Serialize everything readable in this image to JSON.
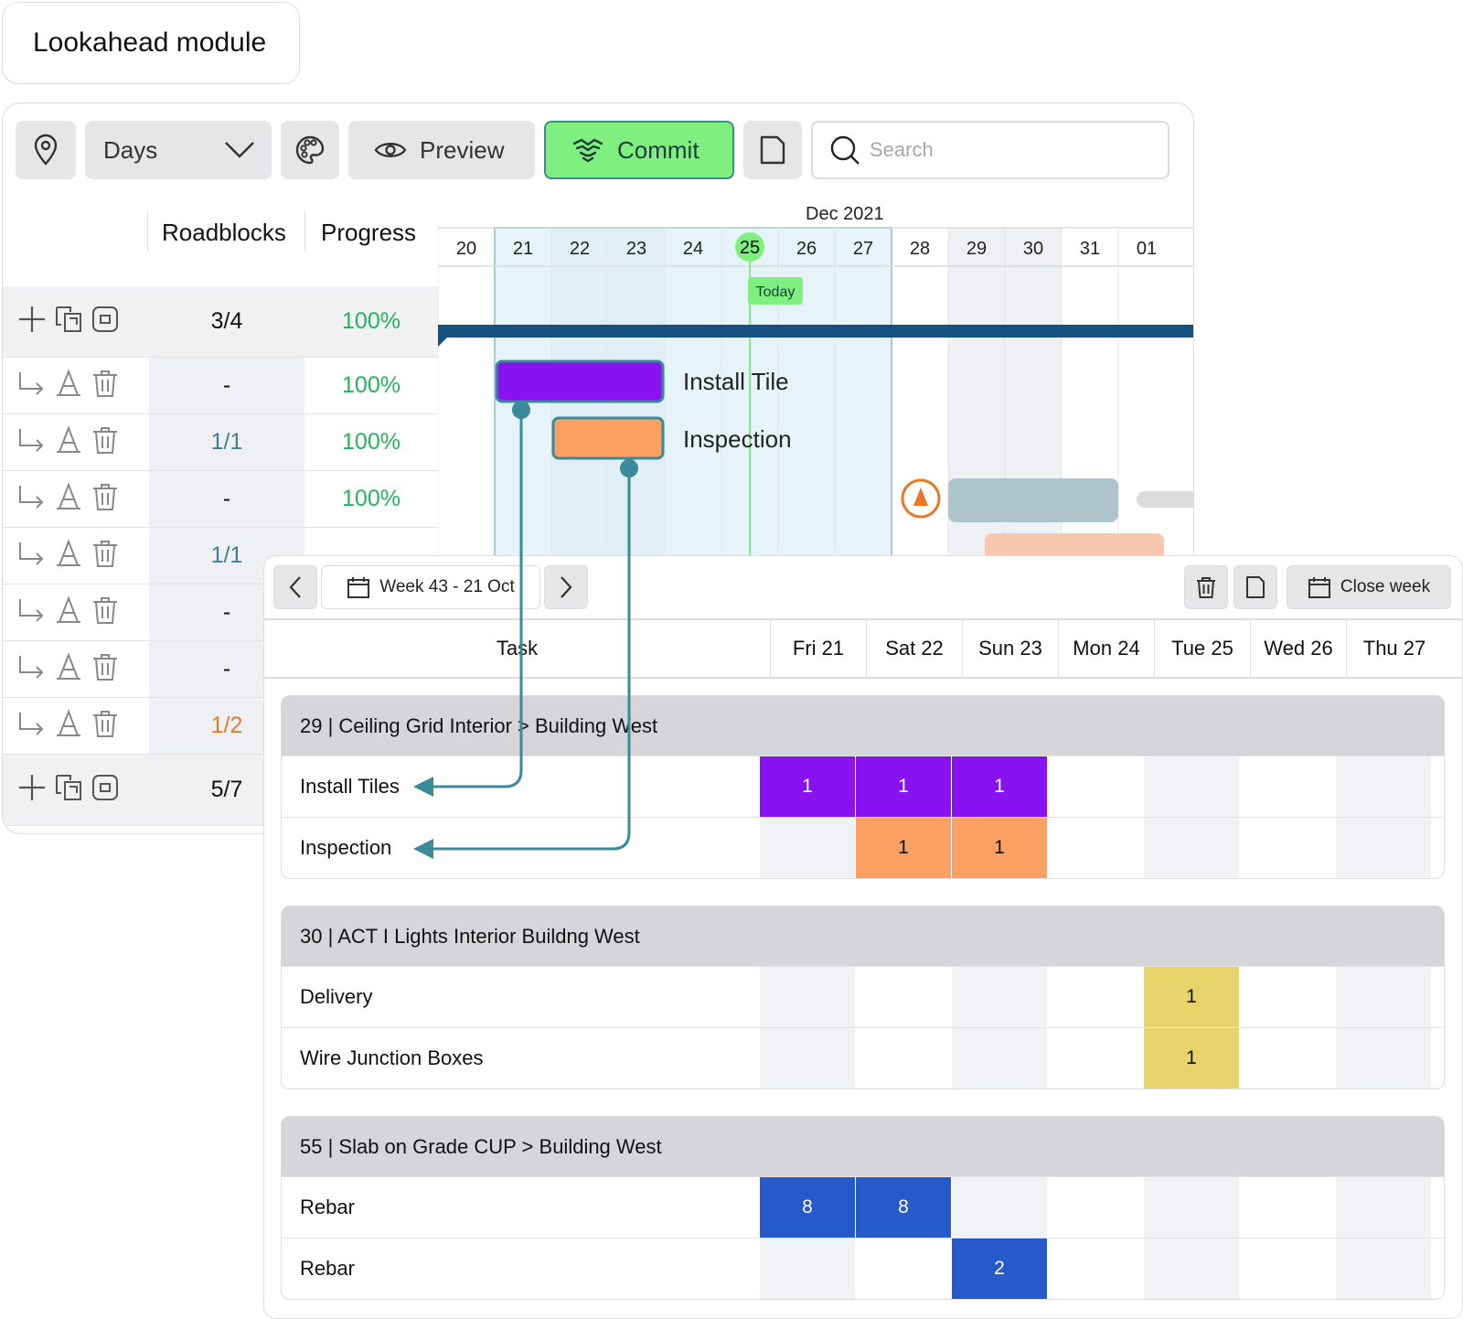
{
  "title": "Lookahead module",
  "toolbar": {
    "days_label": "Days",
    "preview_label": "Preview",
    "commit_label": "Commit",
    "search_placeholder": "Search"
  },
  "table_headers": {
    "roadblocks": "Roadblocks",
    "progress": "Progress"
  },
  "rows": [
    {
      "type": "summary",
      "roadblocks": "3/4",
      "progress": "100%"
    },
    {
      "type": "task",
      "roadblocks": "-",
      "progress": "100%"
    },
    {
      "type": "task",
      "roadblocks": "1/1",
      "progress": "100%"
    },
    {
      "type": "task",
      "roadblocks": "-",
      "progress": "100%"
    },
    {
      "type": "task",
      "roadblocks": "1/1",
      "progress": ""
    },
    {
      "type": "task",
      "roadblocks": "-",
      "progress": ""
    },
    {
      "type": "task",
      "roadblocks": "-",
      "progress": ""
    },
    {
      "type": "task",
      "roadblocks": "1/2",
      "progress": ""
    },
    {
      "type": "summary",
      "roadblocks": "5/7",
      "progress": ""
    }
  ],
  "gantt": {
    "month": "Dec 2021",
    "days": [
      "20",
      "21",
      "22",
      "23",
      "24",
      "25",
      "26",
      "27",
      "28",
      "29",
      "30",
      "31",
      "01"
    ],
    "today_label": "Today",
    "bars": [
      {
        "label": "Install Tile",
        "color": "#8a11f0"
      },
      {
        "label": "Inspection",
        "color": "#fba063"
      }
    ]
  },
  "popup": {
    "week_label": "Week 43 - 21 Oct",
    "close_week_label": "Close week",
    "task_header": "Task",
    "days": [
      "Fri  21",
      "Sat  22",
      "Sun  23",
      "Mon 24",
      "Tue 25",
      "Wed 26",
      "Thu 27"
    ],
    "groups": [
      {
        "title": "29 | Ceiling Grid Interior > Building West",
        "tasks": [
          {
            "name": "Install Tiles",
            "cells": [
              {
                "day": 0,
                "value": "1",
                "color": "#8a11f0"
              },
              {
                "day": 1,
                "value": "1",
                "color": "#8a11f0"
              },
              {
                "day": 2,
                "value": "1",
                "color": "#8a11f0"
              }
            ]
          },
          {
            "name": "Inspection",
            "cells": [
              {
                "day": 1,
                "value": "1",
                "color": "#fba063"
              },
              {
                "day": 2,
                "value": "1",
                "color": "#fba063"
              }
            ]
          }
        ]
      },
      {
        "title": "30 | ACT I Lights Interior Buildng West",
        "tasks": [
          {
            "name": "Delivery",
            "cells": [
              {
                "day": 4,
                "value": "1",
                "color": "#e8d36b"
              }
            ]
          },
          {
            "name": "Wire Junction Boxes",
            "cells": [
              {
                "day": 4,
                "value": "1",
                "color": "#e8d36b"
              }
            ]
          }
        ]
      },
      {
        "title": "55 | Slab on Grade CUP > Building West",
        "tasks": [
          {
            "name": "Rebar",
            "cells": [
              {
                "day": 0,
                "value": "8",
                "color": "#2659c9"
              },
              {
                "day": 1,
                "value": "8",
                "color": "#2659c9"
              }
            ]
          },
          {
            "name": "Rebar",
            "cells": [
              {
                "day": 2,
                "value": "2",
                "color": "#2659c9"
              }
            ]
          }
        ]
      }
    ]
  },
  "colors": {
    "accent_green": "#7ff07f",
    "progress_green": "#27b25b",
    "roadblock_teal": "#3e7f93",
    "roadblock_orange": "#e8772b",
    "summary_bar": "#16507f",
    "connector": "#3a8a99"
  }
}
